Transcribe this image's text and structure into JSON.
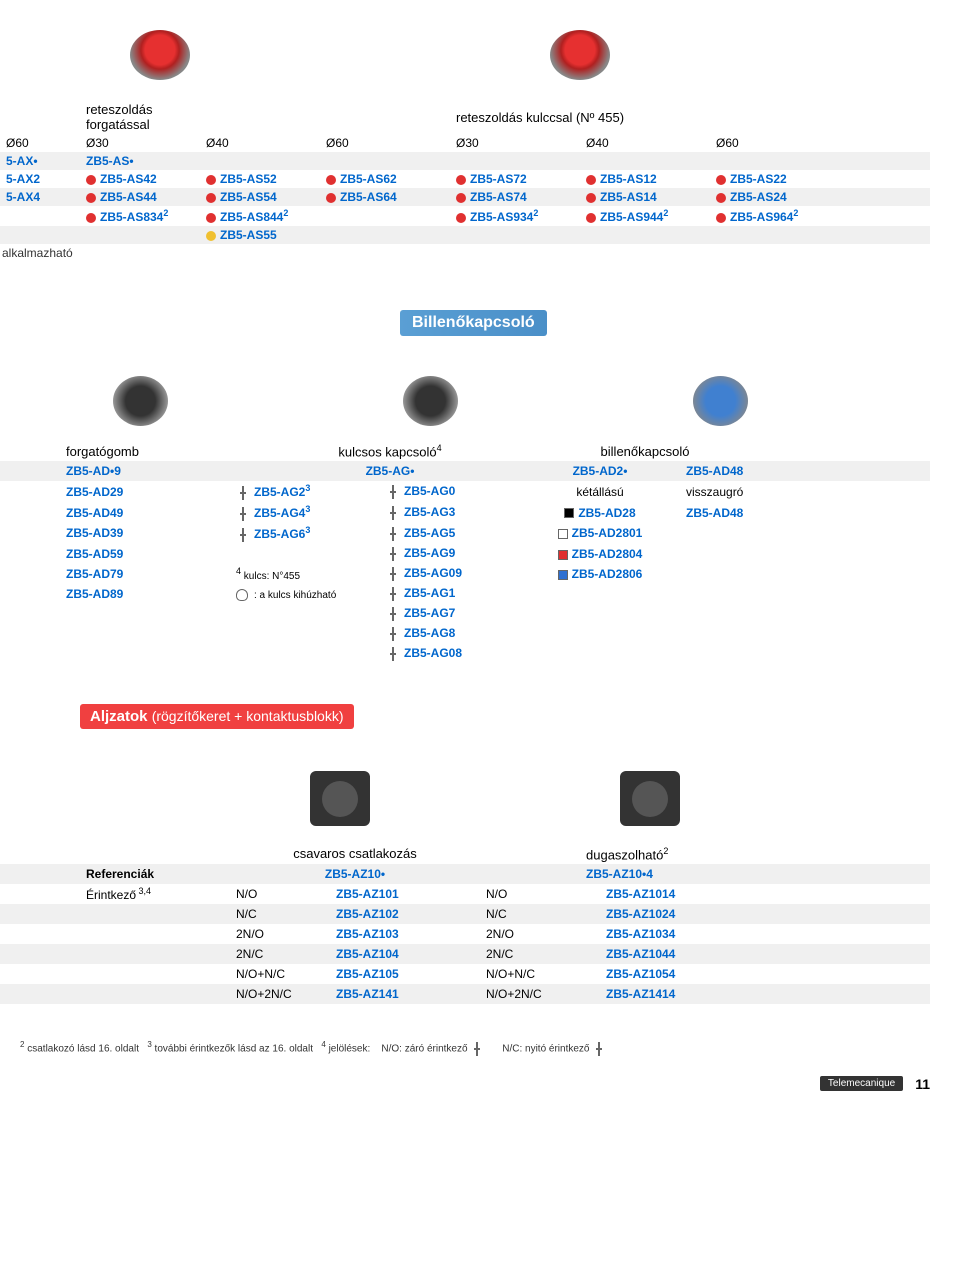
{
  "colors": {
    "blue": "#0066cc",
    "headerBar": "#4a8fc8",
    "pinkBar": "#f04040",
    "stripe": "#f0f0f0",
    "dot_red": "#e03030",
    "dot_yellow": "#f0c030",
    "sq_white": "#ffffff",
    "sq_black": "#000000",
    "sq_red": "#e03030",
    "sq_blue": "#3070d0"
  },
  "top": {
    "header1": "reteszoldás forgatással",
    "header2": "reteszoldás kulccsal (Nº 455)",
    "diameters": [
      "Ø60",
      "Ø30",
      "Ø40",
      "Ø60",
      "Ø30",
      "Ø40",
      "Ø60"
    ],
    "rows": [
      {
        "c0": "5-AX•",
        "c1": "ZB5-AS•"
      },
      {
        "c0": "5-AX2",
        "c1": "ZB5-AS42",
        "c2": "ZB5-AS52",
        "c3": "ZB5-AS62",
        "c4": "ZB5-AS72",
        "c5": "ZB5-AS12",
        "c6": "ZB5-AS22",
        "dots": true
      },
      {
        "c0": "5-AX4",
        "c1": "ZB5-AS44",
        "c2": "ZB5-AS54",
        "c3": "ZB5-AS64",
        "c4": "ZB5-AS74",
        "c5": "ZB5-AS14",
        "c6": "ZB5-AS24",
        "dots": true
      },
      {
        "c1": "ZB5-AS834",
        "c1sup": "2",
        "c2": "ZB5-AS844",
        "c2sup": "2",
        "c4": "ZB5-AS934",
        "c4sup": "2",
        "c5": "ZB5-AS944",
        "c5sup": "2",
        "c6": "ZB5-AS964",
        "c6sup": "2",
        "dots": true
      },
      {
        "c2": "ZB5-AS55",
        "yellowdot": true
      }
    ],
    "alk": "alkalmazható"
  },
  "bill": {
    "title": "Billenőkapcsoló",
    "titles": {
      "a": "forgatógomb",
      "b": "kulcsos kapcsoló",
      "bsup": "4",
      "c": "billenőkapcsoló"
    },
    "row0": {
      "a": "ZB5-AD•9",
      "b": "ZB5-AG•",
      "c": "ZB5-AD2•",
      "d": "ZB5-AD48"
    },
    "rows": [
      {
        "a": "ZB5-AD29",
        "b1": "ZB5-AG2",
        "b1sup": "3",
        "b2": "ZB5-AG0",
        "c": "kétállású",
        "d": "visszaugró",
        "plain": true
      },
      {
        "a": "ZB5-AD49",
        "b1": "ZB5-AG4",
        "b1sup": "3",
        "b2": "ZB5-AG3",
        "c": "ZB5-AD28",
        "d": "ZB5-AD48",
        "sq": "#000000"
      },
      {
        "a": "ZB5-AD39",
        "b1": "ZB5-AG6",
        "b1sup": "3",
        "b2": "ZB5-AG5",
        "c": "ZB5-AD2801",
        "sq": "#ffffff"
      },
      {
        "a": "ZB5-AD59",
        "b2": "ZB5-AG9",
        "c": "ZB5-AD2804",
        "sq": "#e03030"
      },
      {
        "a": "ZB5-AD79",
        "note": "kulcs: N°455",
        "notesup": "4",
        "b2": "ZB5-AG09",
        "c": "ZB5-AD2806",
        "sq": "#3070d0"
      },
      {
        "a": "ZB5-AD89",
        "note2": ": a kulcs kihúzható",
        "b2": "ZB5-AG1"
      },
      {
        "b2": "ZB5-AG7"
      },
      {
        "b2": "ZB5-AG8"
      },
      {
        "b2": "ZB5-AG08"
      }
    ]
  },
  "alj": {
    "title": "Aljzatok",
    "titleSub": "(rögzítőkeret + kontaktusblokk)",
    "head1": "csavaros csatlakozás",
    "head2": "dugaszolható",
    "head2sup": "2",
    "ref": "Referenciák",
    "ref1": "ZB5-AZ10•",
    "ref2": "ZB5-AZ10•4",
    "er": "Érintkező",
    "ersup": "3,4",
    "rows": [
      {
        "t": "N/O",
        "a": "ZB5-AZ101",
        "b": "N/O",
        "c": "ZB5-AZ1014"
      },
      {
        "t": "N/C",
        "a": "ZB5-AZ102",
        "b": "N/C",
        "c": "ZB5-AZ1024"
      },
      {
        "t": "2N/O",
        "a": "ZB5-AZ103",
        "b": "2N/O",
        "c": "ZB5-AZ1034"
      },
      {
        "t": "2N/C",
        "a": "ZB5-AZ104",
        "b": "2N/C",
        "c": "ZB5-AZ1044"
      },
      {
        "t": "N/O+N/C",
        "a": "ZB5-AZ105",
        "b": "N/O+N/C",
        "c": "ZB5-AZ1054"
      },
      {
        "t": "N/O+2N/C",
        "a": "ZB5-AZ141",
        "b": "N/O+2N/C",
        "c": "ZB5-AZ1414"
      }
    ]
  },
  "foot": {
    "t1a": "csatlakozó lásd 16. oldalt",
    "t1b": "további érintkezők lásd az 16. oldalt",
    "t1c": "jelölések:",
    "no": "N/O: záró érintkező",
    "nc": "N/C: nyitó érintkező",
    "brand": "Telemecanique",
    "page": "11"
  }
}
